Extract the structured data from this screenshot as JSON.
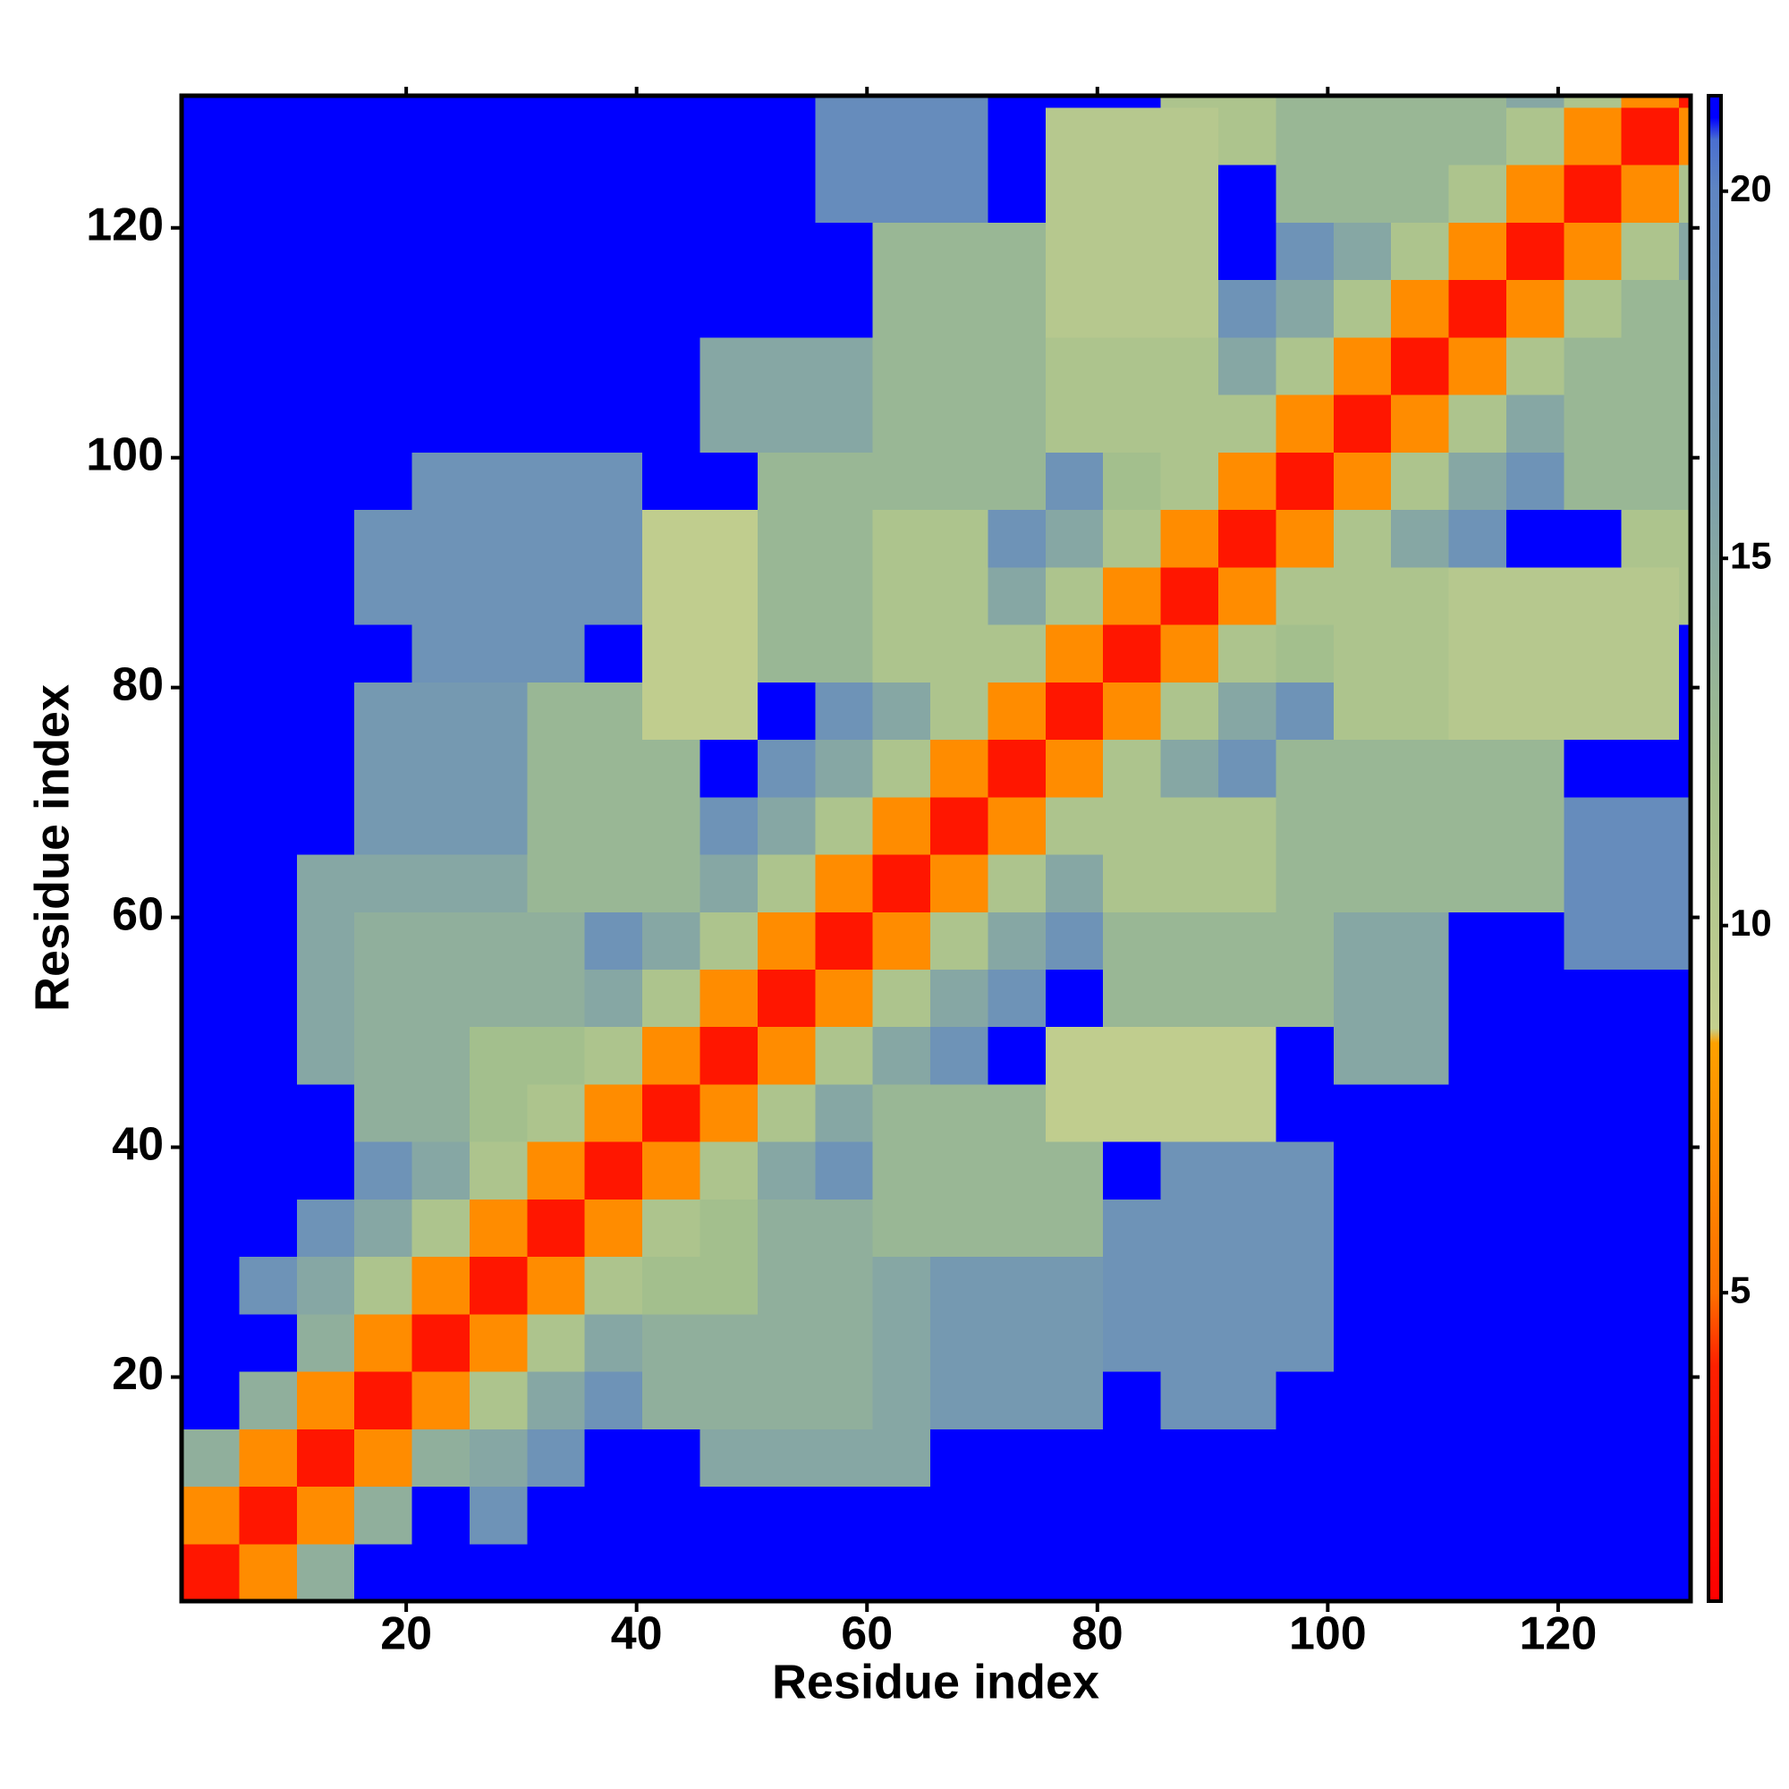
{
  "chart_data": {
    "type": "heatmap",
    "xlabel": "Residue index",
    "ylabel": "Residue index",
    "xlim": [
      0.5,
      131.5
    ],
    "ylim": [
      0.5,
      131.5
    ],
    "xticks": [
      20,
      40,
      60,
      80,
      100,
      120
    ],
    "yticks": [
      20,
      40,
      60,
      80,
      100,
      120
    ],
    "xbins": [
      0.5,
      5.5,
      10.5,
      15.5,
      20.5,
      25.5,
      30.5,
      35.5,
      40.5,
      45.5,
      50.5,
      55.5,
      60.5,
      65.5,
      70.5,
      75.5,
      80.5,
      85.5,
      90.5,
      95.5,
      100.5,
      105.5,
      110.5,
      115.5,
      120.5,
      125.5,
      130.5,
      131.5
    ],
    "ybins": [
      0.5,
      5.5,
      10.5,
      15.5,
      20.5,
      25.5,
      30.5,
      35.5,
      40.5,
      45.5,
      50.5,
      55.5,
      60.5,
      65.5,
      70.5,
      75.5,
      80.5,
      85.5,
      90.5,
      95.5,
      100.5,
      105.5,
      110.5,
      115.5,
      120.5,
      125.5,
      130.5,
      131.5
    ],
    "zlim": [
      0.8,
      21.3
    ],
    "zticks": [
      5,
      10,
      15,
      20
    ],
    "colorscale": [
      [
        0.8,
        "#ff0000"
      ],
      [
        4,
        "#ff2000"
      ],
      [
        5,
        "#ff7000"
      ],
      [
        8.4,
        "#ffa000"
      ],
      [
        8.6,
        "#c4cf8e"
      ],
      [
        12,
        "#a3bf8d"
      ],
      [
        16,
        "#7c9fab"
      ],
      [
        20,
        "#5f86c2"
      ],
      [
        20.7,
        "#4a6fd0"
      ],
      [
        21,
        "#0000ff"
      ],
      [
        21.3,
        "#0000ff"
      ]
    ],
    "values": [
      [
        3,
        7,
        14,
        21,
        21,
        21,
        21,
        21,
        21,
        21,
        21,
        21,
        21,
        21,
        21,
        21,
        21,
        21,
        21,
        21,
        21,
        21,
        21,
        21,
        21,
        21,
        21
      ],
      [
        7,
        3,
        7,
        14,
        21,
        18,
        21,
        21,
        21,
        21,
        21,
        21,
        21,
        21,
        21,
        21,
        21,
        21,
        21,
        21,
        21,
        21,
        21,
        21,
        21,
        21,
        21
      ],
      [
        14,
        7,
        3,
        7,
        14,
        15,
        18,
        21,
        21,
        15,
        15,
        15,
        15,
        21,
        21,
        21,
        21,
        21,
        21,
        21,
        21,
        21,
        21,
        21,
        21,
        21,
        21
      ],
      [
        21,
        14,
        7,
        3,
        7,
        11,
        15,
        18,
        14,
        14,
        14,
        14,
        15,
        17,
        17,
        17,
        21,
        18,
        18,
        21,
        21,
        21,
        21,
        21,
        21,
        21,
        21
      ],
      [
        21,
        21,
        14,
        7,
        3,
        7,
        11,
        15,
        14,
        14,
        14,
        14,
        15,
        17,
        17,
        17,
        18,
        18,
        18,
        18,
        21,
        21,
        21,
        21,
        21,
        21,
        21
      ],
      [
        21,
        18,
        15,
        11,
        7,
        3,
        7,
        11,
        12,
        12,
        14,
        14,
        15,
        17,
        17,
        17,
        18,
        18,
        18,
        18,
        21,
        21,
        21,
        21,
        21,
        21,
        21
      ],
      [
        21,
        21,
        18,
        15,
        11,
        7,
        3,
        7,
        11,
        12,
        14,
        14,
        13,
        13,
        13,
        13,
        18,
        18,
        18,
        18,
        21,
        21,
        21,
        21,
        21,
        21,
        21
      ],
      [
        21,
        21,
        21,
        18,
        15,
        11,
        7,
        3,
        7,
        11,
        15,
        18,
        13,
        13,
        13,
        13,
        21,
        18,
        18,
        18,
        21,
        21,
        21,
        21,
        21,
        21,
        21
      ],
      [
        21,
        21,
        21,
        14,
        14,
        12,
        11,
        7,
        3,
        7,
        11,
        15,
        13,
        13,
        13,
        9,
        9,
        9,
        9,
        21,
        21,
        21,
        21,
        21,
        21,
        21,
        21
      ],
      [
        21,
        21,
        15,
        14,
        14,
        12,
        12,
        11,
        7,
        3,
        7,
        11,
        15,
        18,
        21,
        9,
        9,
        9,
        9,
        21,
        15,
        15,
        21,
        21,
        21,
        21,
        21
      ],
      [
        21,
        21,
        15,
        14,
        14,
        14,
        14,
        15,
        11,
        7,
        3,
        7,
        11,
        15,
        18,
        21,
        13,
        13,
        13,
        13,
        15,
        15,
        21,
        21,
        21,
        21,
        21
      ],
      [
        21,
        21,
        15,
        14,
        14,
        14,
        14,
        18,
        15,
        11,
        7,
        3,
        7,
        11,
        15,
        18,
        13,
        13,
        13,
        13,
        15,
        15,
        21,
        21,
        19,
        19,
        19
      ],
      [
        21,
        21,
        15,
        15,
        15,
        15,
        13,
        13,
        13,
        15,
        11,
        7,
        3,
        7,
        11,
        15,
        11,
        11,
        11,
        13,
        13,
        13,
        13,
        13,
        19,
        19,
        19
      ],
      [
        21,
        21,
        21,
        17,
        17,
        17,
        13,
        13,
        13,
        18,
        15,
        11,
        7,
        3,
        7,
        11,
        11,
        11,
        11,
        13,
        13,
        13,
        13,
        13,
        19,
        19,
        19
      ],
      [
        21,
        21,
        21,
        17,
        17,
        17,
        13,
        13,
        13,
        21,
        18,
        15,
        11,
        7,
        3,
        7,
        11,
        15,
        18,
        13,
        13,
        13,
        13,
        13,
        21,
        21,
        21
      ],
      [
        21,
        21,
        21,
        17,
        17,
        17,
        13,
        13,
        9,
        9,
        21,
        18,
        15,
        11,
        7,
        3,
        7,
        11,
        15,
        18,
        11,
        11,
        10,
        10,
        10,
        10,
        21
      ],
      [
        21,
        21,
        21,
        21,
        18,
        18,
        18,
        21,
        9,
        9,
        13,
        13,
        11,
        11,
        11,
        7,
        3,
        7,
        11,
        12,
        11,
        11,
        10,
        10,
        10,
        10,
        21
      ],
      [
        21,
        21,
        21,
        18,
        18,
        18,
        18,
        18,
        9,
        9,
        13,
        13,
        11,
        11,
        15,
        11,
        7,
        3,
        7,
        11,
        11,
        11,
        10,
        10,
        10,
        10,
        11
      ],
      [
        21,
        21,
        21,
        18,
        18,
        18,
        18,
        18,
        9,
        9,
        13,
        13,
        11,
        11,
        18,
        15,
        11,
        7,
        3,
        7,
        11,
        15,
        18,
        21,
        21,
        11,
        11
      ],
      [
        21,
        21,
        21,
        21,
        18,
        18,
        18,
        18,
        21,
        21,
        13,
        13,
        13,
        13,
        13,
        18,
        12,
        11,
        7,
        3,
        7,
        11,
        15,
        18,
        13,
        13,
        13
      ],
      [
        21,
        21,
        21,
        21,
        21,
        21,
        21,
        21,
        21,
        15,
        15,
        15,
        13,
        13,
        13,
        11,
        11,
        11,
        11,
        7,
        3,
        7,
        11,
        15,
        13,
        13,
        13
      ],
      [
        21,
        21,
        21,
        21,
        21,
        21,
        21,
        21,
        21,
        15,
        15,
        15,
        13,
        13,
        13,
        11,
        11,
        11,
        15,
        11,
        7,
        3,
        7,
        11,
        13,
        13,
        13
      ],
      [
        21,
        21,
        21,
        21,
        21,
        21,
        21,
        21,
        21,
        21,
        21,
        21,
        13,
        13,
        13,
        10,
        10,
        10,
        18,
        15,
        11,
        7,
        3,
        7,
        11,
        13,
        13
      ],
      [
        21,
        21,
        21,
        21,
        21,
        21,
        21,
        21,
        21,
        21,
        21,
        21,
        13,
        13,
        13,
        10,
        10,
        10,
        21,
        18,
        15,
        11,
        7,
        3,
        7,
        11,
        15
      ],
      [
        21,
        21,
        21,
        21,
        21,
        21,
        21,
        21,
        21,
        21,
        21,
        19,
        19,
        19,
        21,
        10,
        10,
        10,
        21,
        13,
        13,
        13,
        11,
        7,
        3,
        7,
        11
      ],
      [
        21,
        21,
        21,
        21,
        21,
        21,
        21,
        21,
        21,
        21,
        21,
        19,
        19,
        19,
        21,
        10,
        10,
        10,
        11,
        13,
        13,
        13,
        13,
        11,
        7,
        3,
        7
      ],
      [
        21,
        21,
        21,
        21,
        21,
        21,
        21,
        21,
        21,
        21,
        21,
        19,
        19,
        19,
        21,
        21,
        21,
        11,
        11,
        13,
        13,
        13,
        13,
        15,
        11,
        7,
        3
      ]
    ]
  }
}
